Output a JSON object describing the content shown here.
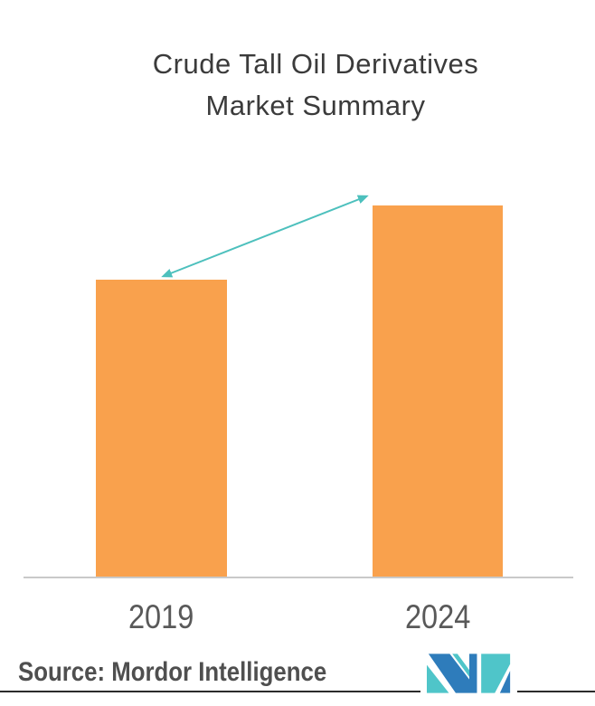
{
  "chart": {
    "title_line1": "Crude Tall Oil Derivatives",
    "title_line2": "Market Summary",
    "source_label": "Source: Mordor Intelligence",
    "logo_name": "mordor-intelligence-logo",
    "colors": {
      "bar_orange": "#F9A14D",
      "arrow_teal": "#4DC0BD",
      "axis_gray": "#C9C9C9",
      "title_text": "#3B3B3B",
      "year_text": "#595959",
      "source_text": "#4F4F4F",
      "divider": "#2B2B2B",
      "logo_blue": "#2E7CBB",
      "logo_teal": "#4FC5C9",
      "background": "#FFFFFF"
    }
  },
  "chart_data": {
    "type": "bar",
    "title": "Crude Tall Oil Derivatives Market Summary",
    "categories": [
      "2019",
      "2024"
    ],
    "values": [
      0.8,
      1.0
    ],
    "value_note": "No numeric axis or data labels are shown; values are relative bar heights with the 2024 bar normalized to 1.0 (2019 bar is ~80% of 2024).",
    "xlabel": "",
    "ylabel": "",
    "grid": false,
    "legend": false,
    "annotations": [
      "teal double-headed arrow rising from the top of the 2019 bar to the top of the 2024 bar indicating market growth"
    ],
    "bar_color": "#F9A14D",
    "arrow_color": "#4DC0BD",
    "source": "Source: Mordor Intelligence"
  }
}
